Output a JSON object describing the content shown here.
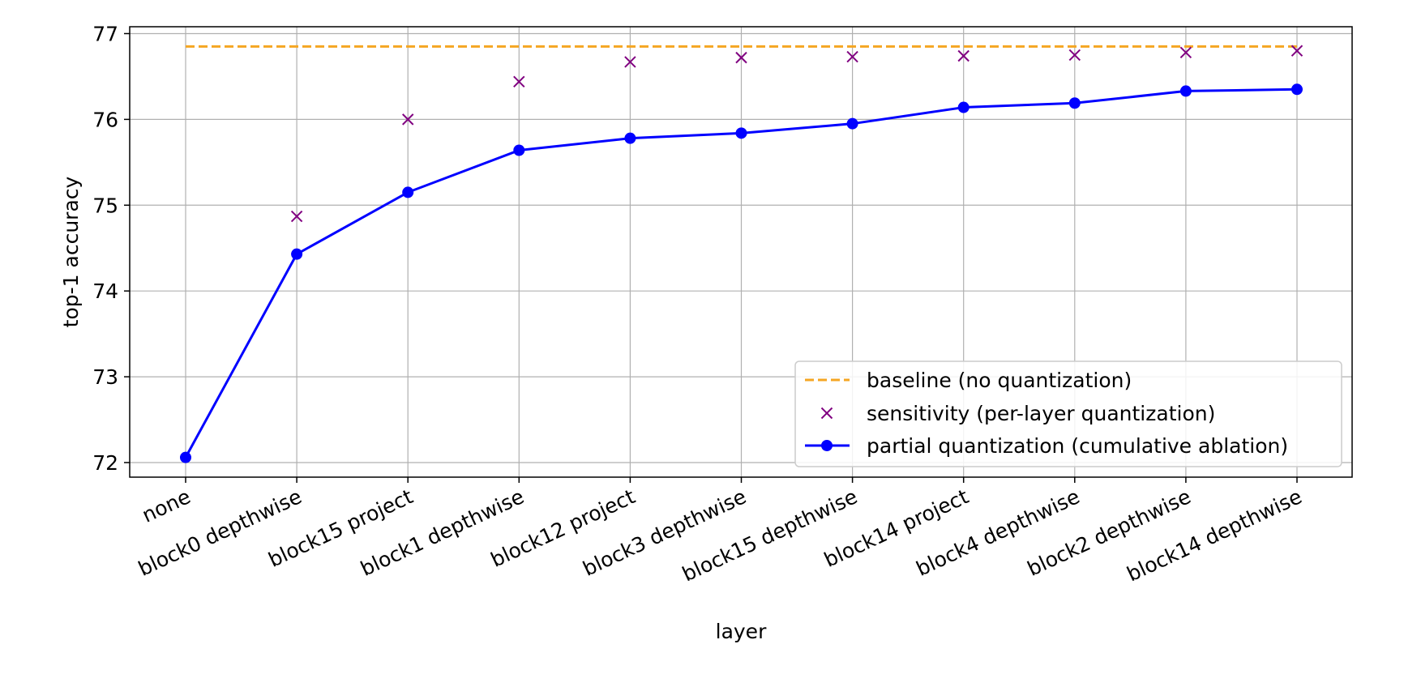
{
  "chart_data": {
    "type": "line",
    "title": "",
    "xlabel": "layer",
    "ylabel": "top-1 accuracy",
    "categories": [
      "none",
      "block0 depthwise",
      "block15 project",
      "block1 depthwise",
      "block12 project",
      "block3 depthwise",
      "block15 depthwise",
      "block14 project",
      "block4 depthwise",
      "block2 depthwise",
      "block14 depthwise"
    ],
    "ylim": [
      71.83,
      77.08
    ],
    "yticks": [
      "72",
      "73",
      "74",
      "75",
      "76",
      "77"
    ],
    "grid": true,
    "legend_position": "lower-right",
    "series": [
      {
        "name": "baseline (no quantization)",
        "style": "dashed-line",
        "color": "#f5a623",
        "values": [
          76.85,
          76.85,
          76.85,
          76.85,
          76.85,
          76.85,
          76.85,
          76.85,
          76.85,
          76.85,
          76.85
        ]
      },
      {
        "name": "sensitivity (per-layer quantization)",
        "style": "x-markers",
        "color": "#800080",
        "values": [
          null,
          74.87,
          76.0,
          76.44,
          76.67,
          76.72,
          76.73,
          76.74,
          76.75,
          76.78,
          76.8
        ]
      },
      {
        "name": "partial quantization (cumulative ablation)",
        "style": "line-circles",
        "color": "#0000ff",
        "values": [
          72.06,
          74.43,
          75.15,
          75.64,
          75.78,
          75.84,
          75.95,
          76.14,
          76.19,
          76.33,
          76.35
        ]
      }
    ]
  }
}
